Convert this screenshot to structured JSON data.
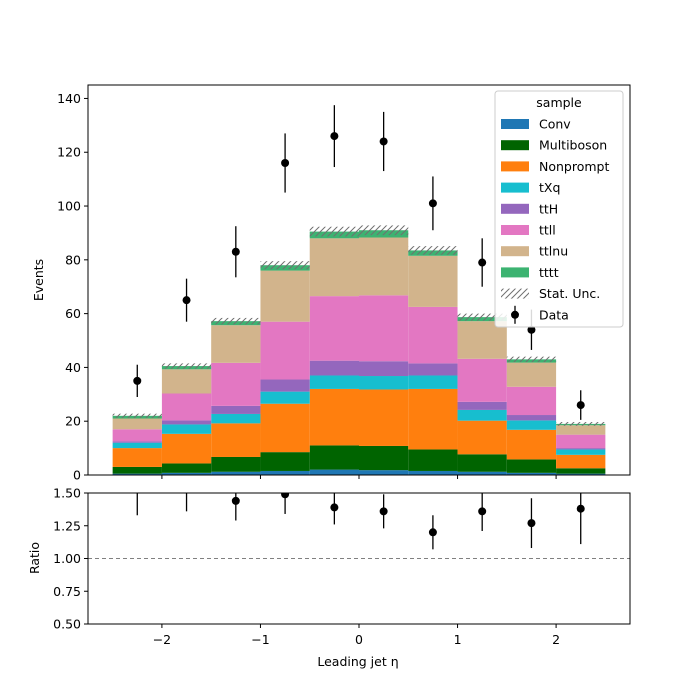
{
  "chart_data": {
    "type": "bar",
    "stacked": true,
    "bin_edges": [
      -2.5,
      -2.0,
      -1.5,
      -1.0,
      -0.5,
      0.0,
      0.5,
      1.0,
      1.5,
      2.0,
      2.5
    ],
    "xlim": [
      -2.75,
      2.75
    ],
    "xticks": [
      -2,
      -1,
      0,
      1,
      2
    ],
    "xtick_labels": [
      "−2",
      "−1",
      "0",
      "1",
      "2"
    ],
    "xlabel": "Leading jet  η",
    "main": {
      "ylabel": "Events",
      "ylim": [
        0,
        145
      ],
      "yticks": [
        0,
        20,
        40,
        60,
        80,
        100,
        120,
        140
      ],
      "series": [
        {
          "name": "Conv",
          "color": "#1f77b4",
          "values": [
            0.5,
            0.8,
            1.2,
            1.5,
            2.0,
            1.8,
            1.5,
            1.2,
            0.8,
            0.5
          ]
        },
        {
          "name": "Multiboson",
          "color": "#006400",
          "values": [
            2.5,
            3.5,
            5.5,
            7.0,
            9.0,
            9.0,
            8.0,
            6.5,
            5.0,
            2.0
          ]
        },
        {
          "name": "Nonprompt",
          "color": "#ff7f0e",
          "values": [
            7.0,
            11.0,
            12.5,
            18.0,
            21.0,
            21.0,
            22.5,
            12.5,
            11.0,
            5.0
          ]
        },
        {
          "name": "tXq",
          "color": "#17becf",
          "values": [
            2.0,
            3.5,
            3.5,
            4.5,
            5.0,
            5.0,
            5.0,
            4.0,
            3.5,
            2.0
          ]
        },
        {
          "name": "ttH",
          "color": "#9467bd",
          "values": [
            0.5,
            1.5,
            3.0,
            4.5,
            5.5,
            5.5,
            4.5,
            3.0,
            2.0,
            0.5
          ]
        },
        {
          "name": "ttll",
          "color": "#e377c2",
          "values": [
            4.5,
            10.0,
            16.0,
            21.5,
            24.0,
            24.5,
            21.0,
            16.0,
            10.5,
            5.0
          ]
        },
        {
          "name": "ttlnu",
          "color": "#d2b48c",
          "values": [
            4.0,
            9.0,
            14.0,
            19.0,
            21.5,
            21.5,
            19.0,
            14.0,
            9.0,
            3.5
          ]
        },
        {
          "name": "tttt",
          "color": "#3cb371",
          "values": [
            1.0,
            1.2,
            1.5,
            2.0,
            2.5,
            2.7,
            2.0,
            1.5,
            1.2,
            0.5
          ]
        }
      ],
      "stat_unc": {
        "name": "Stat. Unc.",
        "values": [
          0.8,
          1.0,
          1.2,
          1.5,
          1.8,
          1.8,
          1.6,
          1.3,
          1.0,
          0.7
        ]
      },
      "data": {
        "name": "Data",
        "x": [
          -2.25,
          -1.75,
          -1.25,
          -0.75,
          -0.25,
          0.25,
          0.75,
          1.25,
          1.75,
          2.25
        ],
        "y": [
          35,
          65,
          83,
          116,
          126,
          124,
          101,
          79,
          54,
          26
        ],
        "yerr": [
          6,
          8,
          9.5,
          11,
          11.5,
          11,
          10,
          9,
          7.5,
          5.5
        ]
      },
      "legend": {
        "title": "sample",
        "placement": "top-right"
      }
    },
    "ratio": {
      "ylabel": "Ratio",
      "ylim": [
        0.5,
        1.5
      ],
      "yticks": [
        0.5,
        0.75,
        1.0,
        1.25,
        1.5
      ],
      "ytick_labels": [
        "0.50",
        "0.75",
        "1.00",
        "1.25",
        "1.50"
      ],
      "reference_line": 1.0,
      "x": [
        -2.25,
        -1.75,
        -1.25,
        -0.75,
        -0.25,
        0.25,
        0.75,
        1.25,
        1.75,
        2.25
      ],
      "y": [
        1.58,
        1.56,
        1.44,
        1.49,
        1.39,
        1.36,
        1.2,
        1.36,
        1.27,
        1.38
      ],
      "yerr": [
        0.25,
        0.2,
        0.15,
        0.15,
        0.13,
        0.13,
        0.13,
        0.15,
        0.19,
        0.27
      ]
    }
  }
}
